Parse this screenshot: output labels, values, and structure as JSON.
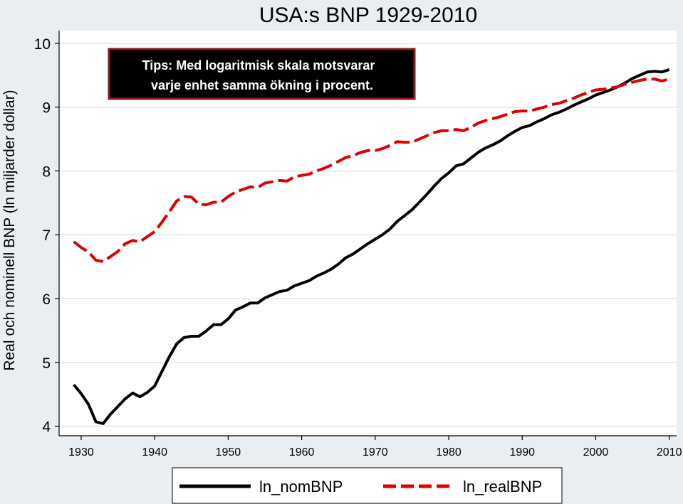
{
  "chart_data": {
    "type": "line",
    "title": "USA:s BNP 1929-2010",
    "xlabel": "",
    "ylabel": "Real och nominell BNP (ln miljarder dollar)",
    "xlim": [
      1927,
      2011
    ],
    "ylim": [
      3.85,
      10.2
    ],
    "xticks": [
      1930,
      1940,
      1950,
      1960,
      1970,
      1980,
      1990,
      2000,
      2010
    ],
    "yticks": [
      4,
      5,
      6,
      7,
      8,
      9,
      10
    ],
    "grid": true,
    "legend_position": "bottom",
    "annotation": {
      "line1": "Tips: Med logaritmisk skala motsvarar",
      "line2": "varje enhet samma ökning i procent."
    },
    "colors": {
      "background": "#e8eef2",
      "plot_background": "#ffffff",
      "nom": "#000000",
      "real": "#dd0000",
      "annotation_bg": "#000000",
      "annotation_border": "#8b1a1a"
    },
    "series": [
      {
        "name": "ln_nomBNP",
        "style": "solid",
        "x": [
          1929,
          1930,
          1931,
          1932,
          1933,
          1934,
          1935,
          1936,
          1937,
          1938,
          1939,
          1940,
          1941,
          1942,
          1943,
          1944,
          1945,
          1946,
          1947,
          1948,
          1949,
          1950,
          1951,
          1952,
          1953,
          1954,
          1955,
          1956,
          1957,
          1958,
          1959,
          1960,
          1961,
          1962,
          1963,
          1964,
          1965,
          1966,
          1967,
          1968,
          1969,
          1970,
          1971,
          1972,
          1973,
          1974,
          1975,
          1976,
          1977,
          1978,
          1979,
          1980,
          1981,
          1982,
          1983,
          1984,
          1985,
          1986,
          1987,
          1988,
          1989,
          1990,
          1991,
          1992,
          1993,
          1994,
          1995,
          1996,
          1997,
          1998,
          1999,
          2000,
          2001,
          2002,
          2003,
          2004,
          2005,
          2006,
          2007,
          2008,
          2009,
          2010
        ],
        "y": [
          4.65,
          4.51,
          4.34,
          4.07,
          4.04,
          4.19,
          4.31,
          4.43,
          4.52,
          4.46,
          4.53,
          4.63,
          4.86,
          5.09,
          5.29,
          5.39,
          5.41,
          5.41,
          5.49,
          5.59,
          5.59,
          5.68,
          5.82,
          5.87,
          5.93,
          5.93,
          6.01,
          6.06,
          6.11,
          6.13,
          6.2,
          6.24,
          6.28,
          6.35,
          6.4,
          6.46,
          6.54,
          6.64,
          6.7,
          6.78,
          6.86,
          6.93,
          7.0,
          7.09,
          7.21,
          7.3,
          7.39,
          7.51,
          7.63,
          7.76,
          7.88,
          7.97,
          8.08,
          8.11,
          8.2,
          8.29,
          8.36,
          8.41,
          8.47,
          8.55,
          8.62,
          8.68,
          8.71,
          8.77,
          8.82,
          8.88,
          8.92,
          8.97,
          9.03,
          9.08,
          9.13,
          9.19,
          9.23,
          9.27,
          9.32,
          9.38,
          9.45,
          9.5,
          9.55,
          9.56,
          9.55,
          9.59
        ]
      },
      {
        "name": "ln_realBNP",
        "style": "dashed",
        "x": [
          1929,
          1930,
          1931,
          1932,
          1933,
          1934,
          1935,
          1936,
          1937,
          1938,
          1939,
          1940,
          1941,
          1942,
          1943,
          1944,
          1945,
          1946,
          1947,
          1948,
          1949,
          1950,
          1951,
          1952,
          1953,
          1954,
          1955,
          1956,
          1957,
          1958,
          1959,
          1960,
          1961,
          1962,
          1963,
          1964,
          1965,
          1966,
          1967,
          1968,
          1969,
          1970,
          1971,
          1972,
          1973,
          1974,
          1975,
          1976,
          1977,
          1978,
          1979,
          1980,
          1981,
          1982,
          1983,
          1984,
          1985,
          1986,
          1987,
          1988,
          1989,
          1990,
          1991,
          1992,
          1993,
          1994,
          1995,
          1996,
          1997,
          1998,
          1999,
          2000,
          2001,
          2002,
          2003,
          2004,
          2005,
          2006,
          2007,
          2008,
          2009,
          2010
        ],
        "y": [
          6.89,
          6.8,
          6.73,
          6.6,
          6.58,
          6.66,
          6.74,
          6.86,
          6.91,
          6.89,
          6.97,
          7.05,
          7.2,
          7.36,
          7.53,
          7.6,
          7.59,
          7.48,
          7.47,
          7.51,
          7.51,
          7.6,
          7.67,
          7.71,
          7.75,
          7.74,
          7.81,
          7.83,
          7.85,
          7.84,
          7.91,
          7.93,
          7.95,
          8.0,
          8.04,
          8.09,
          8.15,
          8.21,
          8.24,
          8.29,
          8.32,
          8.32,
          8.35,
          8.4,
          8.46,
          8.45,
          8.45,
          8.5,
          8.55,
          8.6,
          8.63,
          8.63,
          8.65,
          8.63,
          8.68,
          8.75,
          8.79,
          8.82,
          8.85,
          8.89,
          8.93,
          8.94,
          8.94,
          8.97,
          9.0,
          9.04,
          9.06,
          9.1,
          9.14,
          9.19,
          9.23,
          9.27,
          9.28,
          9.3,
          9.32,
          9.36,
          9.39,
          9.42,
          9.44,
          9.44,
          9.41,
          9.44
        ]
      }
    ]
  }
}
